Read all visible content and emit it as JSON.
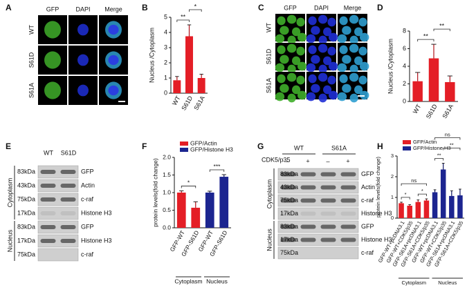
{
  "panels": {
    "A": {
      "letter": "A",
      "columns": [
        "GFP",
        "DAPI",
        "Merge"
      ],
      "rows": [
        "WT",
        "S61D",
        "S61A"
      ]
    },
    "C": {
      "letter": "C",
      "columns": [
        "GFP",
        "DAPI",
        "Merge"
      ],
      "rows": [
        "WT",
        "S61D",
        "S61A"
      ]
    },
    "E": {
      "letter": "E",
      "lanes": [
        "WT",
        "S61D"
      ],
      "compartments": [
        "Cytoplasm",
        "Nucleus"
      ],
      "bands": [
        {
          "size": "83kDa",
          "target": "GFP"
        },
        {
          "size": "43kDa",
          "target": "Actin"
        },
        {
          "size": "75kDa",
          "target": "c-raf"
        },
        {
          "size": "17kDa",
          "target": "Histone H3"
        },
        {
          "size": "83kDa",
          "target": "GFP"
        },
        {
          "size": "17kDa",
          "target": "Histone H3"
        },
        {
          "size": "75kDa",
          "target": "c-raf"
        }
      ]
    },
    "G": {
      "letter": "G",
      "treatment": "CDK5/p35",
      "groups": [
        "WT",
        "S61A"
      ],
      "signs": [
        "–",
        "+",
        "–",
        "+"
      ],
      "compartments": [
        "Cytoplasm",
        "Nucleus"
      ],
      "bands": [
        {
          "size": "83kDa",
          "target": "GFP"
        },
        {
          "size": "43kDa",
          "target": "Actin"
        },
        {
          "size": "75kDa",
          "target": "c-raf"
        },
        {
          "size": "17kDa",
          "target": "Histone H3"
        },
        {
          "size": "83kDa",
          "target": "GFP"
        },
        {
          "size": "17kDa",
          "target": "Histone H3"
        },
        {
          "size": "75kDa",
          "target": "c-raf"
        }
      ]
    }
  },
  "chart_data": [
    {
      "letter": "B",
      "type": "bar",
      "y_label": "Nucleus /Cytoplasm",
      "categories": [
        "WT",
        "S61D",
        "S61A"
      ],
      "series": [
        {
          "color": "#e41e26",
          "values": [
            0.85,
            3.75,
            1.0
          ],
          "errors": [
            0.25,
            0.75,
            0.25
          ]
        }
      ],
      "ylim": [
        0,
        5
      ],
      "yticks": [
        0,
        1,
        2,
        3,
        4,
        5
      ],
      "significance": [
        {
          "label": "**",
          "between": [
            0,
            1
          ]
        },
        {
          "label": "*",
          "between": [
            1,
            2
          ]
        }
      ]
    },
    {
      "letter": "D",
      "type": "bar",
      "y_label": "Nucleus /Cytoplasm",
      "categories": [
        "WT",
        "S61D",
        "S61A"
      ],
      "series": [
        {
          "color": "#e41e26",
          "values": [
            2.3,
            4.9,
            2.2
          ],
          "errors": [
            1.0,
            1.6,
            0.7
          ]
        }
      ],
      "ylim": [
        0,
        8
      ],
      "yticks": [
        0,
        2,
        4,
        6,
        8
      ],
      "significance": [
        {
          "label": "**",
          "between": [
            0,
            1
          ]
        },
        {
          "label": "**",
          "between": [
            1,
            2
          ]
        }
      ]
    },
    {
      "letter": "F",
      "type": "bar",
      "y_label": "protein levels(fold change)",
      "categories": [
        "GFP-WT",
        "GFP-S61D",
        "GFP-WT",
        "GFP-S61D"
      ],
      "series": [
        {
          "name": "GFP/Actin",
          "color": "#e41e26",
          "values": [
            1.0,
            0.57,
            null,
            null
          ],
          "errors": [
            0.05,
            0.17,
            null,
            null
          ]
        },
        {
          "name": "GFP/Histone H3",
          "color": "#1c2590",
          "values": [
            null,
            null,
            1.0,
            1.45
          ],
          "errors": [
            null,
            null,
            0.04,
            0.06
          ]
        }
      ],
      "ylim": [
        0,
        2
      ],
      "yticks": [
        {
          "value": 0,
          "label": "0.0"
        },
        0.5,
        {
          "value": 1,
          "label": "1.0"
        },
        1.5,
        {
          "value": 2,
          "label": "2.0"
        }
      ],
      "significance": [
        {
          "label": "*",
          "between": [
            0,
            1
          ]
        },
        {
          "label": "***",
          "between": [
            2,
            3
          ]
        }
      ],
      "groups": [
        {
          "label": "Cytoplasm",
          "span": [
            0,
            1
          ]
        },
        {
          "label": "Nucleus",
          "span": [
            2,
            3
          ]
        }
      ]
    },
    {
      "letter": "H",
      "type": "bar",
      "y_label": "protein levels(fold change)",
      "categories": [
        "GFP-WT+pcDNA3.1",
        "GFP-WT+CDK5/p35",
        "GFP-S61A+pcDNA3.1",
        "GFP-S61A+CDK5/p35",
        "GFP-WT+pcDNA3.1",
        "GFP-WT+CDK5/p35",
        "GFP-S61A+pcDNA3.1",
        "GFP-S61A+CDK5/p35"
      ],
      "series": [
        {
          "name": "GFP/Actin",
          "color": "#e41e26",
          "values": [
            0.72,
            0.6,
            0.78,
            0.85,
            null,
            null,
            null,
            null
          ],
          "errors": [
            0.05,
            0.05,
            0.1,
            0.08,
            null,
            null,
            null,
            null
          ]
        },
        {
          "name": "GFP/Histone H3",
          "color": "#1c2590",
          "values": [
            null,
            null,
            null,
            null,
            1.25,
            2.35,
            1.07,
            1.1
          ],
          "errors": [
            null,
            null,
            null,
            null,
            0.12,
            0.3,
            0.25,
            0.3
          ]
        }
      ],
      "ylim": [
        0,
        3
      ],
      "yticks": [
        0,
        1,
        2,
        3
      ],
      "significance": [
        {
          "label": "*",
          "between": [
            0,
            1
          ]
        },
        {
          "label": "*",
          "between": [
            2,
            3
          ]
        },
        {
          "label": "ns",
          "between": [
            0,
            3
          ]
        },
        {
          "label": "**",
          "between": [
            4,
            5
          ]
        },
        {
          "label": "**",
          "between": [
            5,
            7
          ]
        },
        {
          "label": "ns",
          "between": [
            4,
            7
          ]
        }
      ],
      "groups": [
        {
          "label": "Cytoplasm",
          "span": [
            0,
            3
          ]
        },
        {
          "label": "Nucleus",
          "span": [
            4,
            7
          ]
        }
      ]
    }
  ]
}
